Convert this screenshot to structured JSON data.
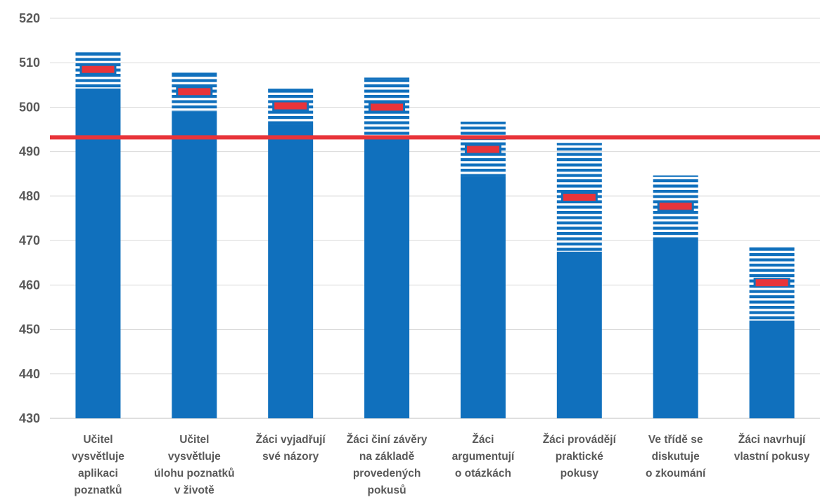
{
  "chart_data": {
    "type": "bar",
    "title": "",
    "xlabel": "",
    "ylabel": "",
    "ylim": [
      430,
      520
    ],
    "yticks": [
      430,
      440,
      450,
      460,
      470,
      480,
      490,
      500,
      510,
      520
    ],
    "grid": true,
    "legend": "none",
    "categories": [
      [
        "Učitel",
        "vysvětluje",
        "aplikaci",
        "poznatků"
      ],
      [
        "Učitel",
        "vysvětluje",
        "úlohu poznatků",
        "v životě"
      ],
      [
        "Žáci vyjadřují",
        "své názory"
      ],
      [
        "Žáci činí závěry",
        "na základě",
        "provedených",
        "pokusů"
      ],
      [
        "Žáci",
        "argumentují",
        "o otázkách"
      ],
      [
        "Žáci provádějí",
        "praktické",
        "pokusy"
      ],
      [
        "Ve třídě se",
        "diskutuje",
        "o zkoumání"
      ],
      [
        "Žáci navrhují",
        "vlastní pokusy"
      ]
    ],
    "series": [
      {
        "values": [
          504.2,
          499.0,
          496.2,
          493.5,
          484.5,
          467.5,
          470.5,
          452.0
        ]
      },
      {
        "values": [
          512.2,
          507.6,
          504.0,
          506.5,
          496.6,
          491.8,
          484.5,
          468.3
        ]
      },
      {
        "values": [
          508.5,
          503.5,
          500.3,
          500.0,
          490.5,
          479.7,
          477.7,
          460.5
        ]
      }
    ],
    "reference_line": 493.2,
    "colors": {
      "bar": "#1070bd",
      "stripe": "#1070bd",
      "marker": "#e8343a",
      "reference": "#e8343a",
      "grid": "#d9d9d9",
      "text": "#595959"
    }
  }
}
